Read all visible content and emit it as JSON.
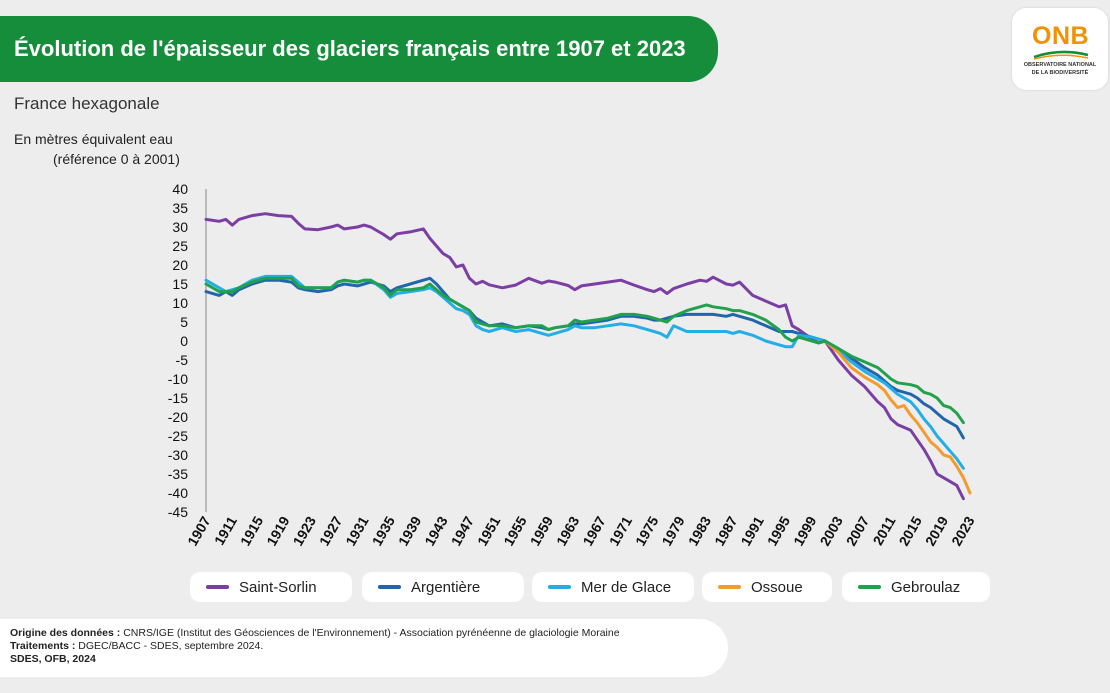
{
  "header": {
    "title": "Évolution de l'épaisseur des glaciers français entre 1907 et 2023"
  },
  "logo": {
    "name": "ONB",
    "sub1": "OBSERVATOIRE NATIONAL",
    "sub2": "DE LA BIODIVERSITÉ"
  },
  "subtitle": "France hexagonale",
  "unit_line1": "En mètres équivalent eau",
  "unit_line2": "(référence 0 à 2001)",
  "footer": {
    "origin_label": "Origine des données :",
    "origin_text": " CNRS/IGE (Institut des Géosciences de l'Environnement) - Association pyrénéenne de glaciologie Moraine",
    "processing_label": "Traitements :",
    "processing_text": " DGEC/BACC - SDES, septembre 2024.",
    "credit": "SDES, OFB, 2024"
  },
  "chart_data": {
    "type": "line",
    "title": "Évolution de l'épaisseur des glaciers français entre 1907 et 2023",
    "ylabel": "En mètres équivalent eau (référence 0 à 2001)",
    "xlabel": "",
    "xlim": [
      1907,
      2023
    ],
    "ylim": [
      -45,
      40
    ],
    "yticks": [
      40,
      35,
      30,
      25,
      20,
      15,
      10,
      5,
      0,
      -5,
      -10,
      -15,
      -20,
      -25,
      -30,
      -35,
      -40,
      -45
    ],
    "xticks": [
      1907,
      1911,
      1915,
      1919,
      1923,
      1927,
      1931,
      1935,
      1939,
      1943,
      1947,
      1951,
      1955,
      1959,
      1963,
      1967,
      1971,
      1975,
      1979,
      1983,
      1987,
      1991,
      1995,
      1999,
      2003,
      2007,
      2011,
      2015,
      2019,
      2023
    ],
    "legend_position": "bottom",
    "grid": false,
    "series": [
      {
        "name": "Saint-Sorlin",
        "color": "#7b3fa4",
        "x": [
          1907,
          1909,
          1910,
          1911,
          1912,
          1914,
          1916,
          1918,
          1920,
          1921,
          1922,
          1924,
          1926,
          1927,
          1928,
          1930,
          1931,
          1932,
          1934,
          1935,
          1936,
          1938,
          1940,
          1941,
          1942,
          1943,
          1944,
          1945,
          1946,
          1947,
          1948,
          1949,
          1950,
          1952,
          1954,
          1956,
          1958,
          1959,
          1960,
          1962,
          1963,
          1964,
          1966,
          1968,
          1970,
          1972,
          1974,
          1975,
          1976,
          1977,
          1978,
          1980,
          1982,
          1983,
          1984,
          1986,
          1987,
          1988,
          1990,
          1992,
          1994,
          1995,
          1996,
          1997,
          1999,
          2000,
          2001,
          2003,
          2005,
          2007,
          2009,
          2010,
          2011,
          2012,
          2014,
          2015,
          2016,
          2017,
          2018,
          2019,
          2020,
          2021,
          2022
        ],
        "y": [
          32,
          31.5,
          32,
          30.5,
          32,
          33,
          33.5,
          33,
          32.8,
          31,
          29.5,
          29.3,
          30,
          30.5,
          29.5,
          30,
          30.5,
          30,
          28,
          26.8,
          28.2,
          28.7,
          29.5,
          27,
          25,
          23,
          22,
          19.5,
          20,
          16.5,
          15,
          15.7,
          14.8,
          14,
          14.7,
          16.5,
          15.2,
          15.8,
          15.5,
          14.6,
          13.5,
          14.5,
          15,
          15.5,
          16,
          14.7,
          13.5,
          13,
          13.8,
          12.5,
          13.8,
          15,
          16,
          15.7,
          16.8,
          15,
          14.7,
          15.5,
          12,
          10.5,
          9,
          9.5,
          4,
          3,
          0.5,
          -0.5,
          0,
          -5,
          -9,
          -12,
          -16,
          -17.5,
          -20.5,
          -22,
          -23.5,
          -26,
          -28.5,
          -31.5,
          -35,
          -36,
          -37,
          -38,
          -41.5
        ]
      },
      {
        "name": "Argentière",
        "color": "#2166ac",
        "x": [
          1907,
          1909,
          1910,
          1911,
          1912,
          1914,
          1916,
          1918,
          1920,
          1921,
          1922,
          1924,
          1926,
          1927,
          1928,
          1930,
          1931,
          1932,
          1934,
          1935,
          1936,
          1938,
          1940,
          1941,
          1942,
          1943,
          1944,
          1945,
          1946,
          1947,
          1948,
          1949,
          1950,
          1952,
          1954,
          1956,
          1958,
          1959,
          1960,
          1962,
          1963,
          1964,
          1966,
          1968,
          1970,
          1972,
          1974,
          1975,
          1976,
          1977,
          1978,
          1980,
          1982,
          1983,
          1984,
          1986,
          1987,
          1988,
          1990,
          1992,
          1994,
          1995,
          1996,
          1997,
          1999,
          2000,
          2001,
          2003,
          2005,
          2007,
          2009,
          2010,
          2011,
          2012,
          2014,
          2015,
          2016,
          2017,
          2018,
          2019,
          2020,
          2021,
          2022
        ],
        "y": [
          13,
          12,
          13,
          12,
          13.5,
          15,
          16,
          16,
          15.5,
          14,
          13.5,
          13,
          13.5,
          14.5,
          15,
          14.5,
          15,
          15.5,
          14.5,
          13,
          14,
          15,
          16,
          16.5,
          15,
          13,
          11,
          10,
          9,
          8,
          6,
          5,
          4,
          4.5,
          3.5,
          4,
          3.5,
          3,
          3.5,
          4,
          4.5,
          4.5,
          5,
          5.5,
          6.5,
          6.5,
          6,
          5.5,
          5.5,
          6,
          6.5,
          7,
          7,
          7,
          7,
          6.5,
          7,
          6.5,
          5.5,
          4,
          2.5,
          2.5,
          2.5,
          2,
          1,
          0.5,
          0,
          -2,
          -4.5,
          -7,
          -9,
          -10.5,
          -12,
          -13,
          -14,
          -15,
          -16.5,
          -17.5,
          -19,
          -20.5,
          -21.5,
          -22.5,
          -25.5
        ]
      },
      {
        "name": "Mer de Glace",
        "color": "#23aee8",
        "x": [
          1907,
          1909,
          1910,
          1911,
          1912,
          1914,
          1916,
          1918,
          1920,
          1921,
          1922,
          1924,
          1926,
          1927,
          1928,
          1930,
          1931,
          1932,
          1934,
          1935,
          1936,
          1938,
          1940,
          1941,
          1942,
          1943,
          1944,
          1945,
          1946,
          1947,
          1948,
          1949,
          1950,
          1952,
          1954,
          1956,
          1958,
          1959,
          1960,
          1962,
          1963,
          1964,
          1966,
          1968,
          1970,
          1972,
          1974,
          1975,
          1976,
          1977,
          1978,
          1980,
          1982,
          1983,
          1984,
          1986,
          1987,
          1988,
          1990,
          1992,
          1994,
          1995,
          1996,
          1997,
          1999,
          2000,
          2001,
          2003,
          2005,
          2007,
          2009,
          2010,
          2011,
          2012,
          2014,
          2015,
          2016,
          2017,
          2018,
          2019,
          2020,
          2021,
          2022
        ],
        "y": [
          16,
          14,
          13,
          13.5,
          14,
          16,
          17,
          17,
          17,
          15.5,
          14,
          14,
          14,
          15.5,
          16,
          15.5,
          16,
          16,
          13.5,
          11.5,
          12.5,
          13,
          13.5,
          14,
          13,
          11.5,
          10,
          8.5,
          8,
          7,
          4,
          3,
          2.5,
          3.5,
          2.5,
          3,
          2,
          1.5,
          2,
          3,
          4,
          3.5,
          3.5,
          4,
          4.5,
          4,
          3,
          2.5,
          2,
          1,
          4,
          2.5,
          2.5,
          2.5,
          2.5,
          2.5,
          2,
          2.5,
          1.5,
          0,
          -1,
          -1.5,
          -1.5,
          1.5,
          1,
          0.5,
          0,
          -2.5,
          -5.5,
          -8,
          -10,
          -11,
          -12.5,
          -14,
          -16,
          -18,
          -20.5,
          -22.5,
          -25,
          -27,
          -29,
          -31,
          -33.5
        ]
      },
      {
        "name": "Ossoue",
        "color": "#f59a2c",
        "x": [
          2001,
          2003,
          2005,
          2007,
          2009,
          2010,
          2011,
          2012,
          2013,
          2014,
          2015,
          2016,
          2017,
          2018,
          2019,
          2020,
          2021,
          2022,
          2023
        ],
        "y": [
          0,
          -3,
          -7,
          -9.5,
          -11.5,
          -13,
          -15.5,
          -17.5,
          -17,
          -19.5,
          -21.5,
          -24,
          -26.5,
          -28,
          -30,
          -30.5,
          -33,
          -36,
          -40
        ]
      },
      {
        "name": "Gebroulaz",
        "color": "#22a14c",
        "x": [
          1907,
          1909,
          1910,
          1911,
          1912,
          1914,
          1916,
          1918,
          1920,
          1921,
          1922,
          1924,
          1926,
          1927,
          1928,
          1930,
          1931,
          1932,
          1934,
          1935,
          1936,
          1938,
          1940,
          1941,
          1942,
          1943,
          1944,
          1945,
          1946,
          1947,
          1948,
          1949,
          1950,
          1952,
          1954,
          1956,
          1958,
          1959,
          1960,
          1962,
          1963,
          1964,
          1966,
          1968,
          1970,
          1972,
          1974,
          1975,
          1976,
          1977,
          1978,
          1980,
          1982,
          1983,
          1984,
          1986,
          1987,
          1988,
          1990,
          1992,
          1994,
          1995,
          1996,
          1997,
          1999,
          2000,
          2001,
          2003,
          2005,
          2007,
          2009,
          2010,
          2011,
          2012,
          2014,
          2015,
          2016,
          2017,
          2018,
          2019,
          2020,
          2021,
          2022
        ],
        "y": [
          15,
          13,
          13,
          13,
          14,
          15.5,
          16.5,
          16.5,
          16.5,
          14.5,
          14,
          14,
          14,
          15.5,
          16,
          15.5,
          16,
          16,
          14,
          12,
          13.5,
          13.5,
          14,
          15,
          13.5,
          12,
          11,
          10,
          9,
          8,
          5,
          4.5,
          4,
          4,
          3.5,
          4,
          4,
          3,
          3.5,
          4,
          5.5,
          5,
          5.5,
          6,
          7,
          7,
          6.5,
          6,
          5.5,
          5,
          6.5,
          8,
          9,
          9.5,
          9,
          8.5,
          8,
          8,
          7,
          5.5,
          3,
          1,
          0,
          1,
          0,
          -0.5,
          0,
          -2,
          -4,
          -5.5,
          -7,
          -8.5,
          -10,
          -11,
          -11.5,
          -12,
          -13.5,
          -14,
          -15,
          -17,
          -17.5,
          -19,
          -21.5
        ]
      }
    ]
  }
}
